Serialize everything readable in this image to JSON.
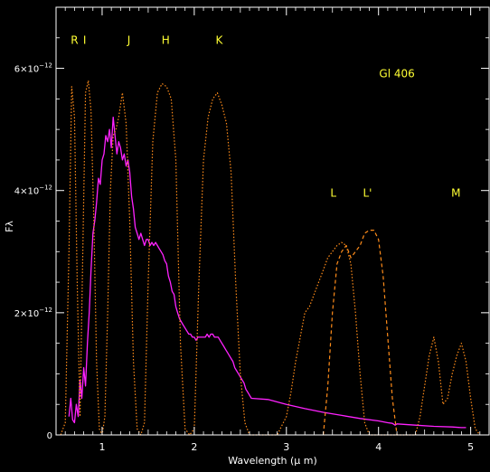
{
  "chart_data": {
    "type": "line",
    "title": "",
    "annotation": "Gl 406",
    "xlabel": "Wavelength (μ m)",
    "ylabel": "Fλ",
    "xlim": [
      0.5,
      5.2
    ],
    "ylim": [
      0,
      7e-12
    ],
    "x_ticks": [
      1,
      2,
      3,
      4,
      5
    ],
    "y_ticks": [
      0,
      2e-12,
      4e-12,
      6e-12
    ],
    "x_tick_labels": [
      "1",
      "2",
      "3",
      "4",
      "5"
    ],
    "y_tick_labels": [
      {
        "mant": "0",
        "exp": ""
      },
      {
        "mant": "2×10",
        "exp": "−12"
      },
      {
        "mant": "4×10",
        "exp": "−12"
      },
      {
        "mant": "6×10",
        "exp": "−12"
      }
    ],
    "grid": false,
    "colors": {
      "background": "#000000",
      "axes": "#ffffff",
      "spectrum": "#ff22ff",
      "filters": "#ff8c1a",
      "band_labels": "#ffff33"
    },
    "band_labels": [
      {
        "text": "R",
        "x": 0.7,
        "y": 6.4e-12
      },
      {
        "text": "I",
        "x": 0.81,
        "y": 6.4e-12
      },
      {
        "text": "J",
        "x": 1.29,
        "y": 6.4e-12
      },
      {
        "text": "H",
        "x": 1.69,
        "y": 6.4e-12
      },
      {
        "text": "K",
        "x": 2.27,
        "y": 6.4e-12
      },
      {
        "text": "L",
        "x": 3.51,
        "y": 3.9e-12
      },
      {
        "text": "L'",
        "x": 3.88,
        "y": 3.9e-12
      },
      {
        "text": "M",
        "x": 4.84,
        "y": 3.9e-12
      }
    ],
    "series": [
      {
        "style": "solid",
        "x": [
          0.64,
          0.66,
          0.68,
          0.7,
          0.72,
          0.74,
          0.76,
          0.78,
          0.8,
          0.82,
          0.84,
          0.86,
          0.88,
          0.9,
          0.92,
          0.94,
          0.96,
          0.98,
          1.0,
          1.02,
          1.04,
          1.06,
          1.08,
          1.1,
          1.12,
          1.14,
          1.16,
          1.18,
          1.2,
          1.22,
          1.24,
          1.26,
          1.28,
          1.3,
          1.32,
          1.34,
          1.36,
          1.38,
          1.4,
          1.42,
          1.44,
          1.46,
          1.48,
          1.5,
          1.52,
          1.54,
          1.56,
          1.58,
          1.6,
          1.62,
          1.64,
          1.66,
          1.68,
          1.7,
          1.72,
          1.74,
          1.76,
          1.78,
          1.8,
          1.82,
          1.84,
          1.86,
          1.88,
          1.9,
          1.92,
          1.94,
          1.96,
          1.98,
          2.0,
          2.02,
          2.04,
          2.06,
          2.08,
          2.1,
          2.12,
          2.14,
          2.16,
          2.18,
          2.2,
          2.22,
          2.24,
          2.26,
          2.28,
          2.3,
          2.32,
          2.34,
          2.36,
          2.38,
          2.4,
          2.42,
          2.44,
          2.46,
          2.48,
          2.5,
          2.52,
          2.54,
          2.56,
          2.58,
          2.6,
          2.62,
          2.8,
          3.0,
          3.2,
          3.4,
          3.6,
          3.8,
          4.0,
          4.1,
          4.15,
          4.18,
          4.2,
          4.4,
          4.6,
          4.8,
          4.9,
          4.95
        ],
        "y": [
          3e-13,
          6e-13,
          2.5e-13,
          2e-13,
          5e-13,
          3e-13,
          9e-13,
          6e-13,
          1.1e-12,
          8e-13,
          1.5e-12,
          2e-12,
          2.7e-12,
          3.3e-12,
          3.5e-12,
          3.8e-12,
          4.2e-12,
          4.1e-12,
          4.5e-12,
          4.6e-12,
          4.9e-12,
          4.8e-12,
          5e-12,
          4.7e-12,
          5.2e-12,
          4.9e-12,
          4.6e-12,
          4.8e-12,
          4.7e-12,
          4.5e-12,
          4.6e-12,
          4.4e-12,
          4.5e-12,
          4.3e-12,
          3.9e-12,
          3.7e-12,
          3.4e-12,
          3.3e-12,
          3.2e-12,
          3.3e-12,
          3.2e-12,
          3.1e-12,
          3.2e-12,
          3.2e-12,
          3.1e-12,
          3.15e-12,
          3.1e-12,
          3.15e-12,
          3.1e-12,
          3.05e-12,
          3e-12,
          2.95e-12,
          2.85e-12,
          2.8e-12,
          2.6e-12,
          2.5e-12,
          2.35e-12,
          2.3e-12,
          2.1e-12,
          2e-12,
          1.9e-12,
          1.85e-12,
          1.8e-12,
          1.75e-12,
          1.7e-12,
          1.65e-12,
          1.65e-12,
          1.6e-12,
          1.6e-12,
          1.55e-12,
          1.6e-12,
          1.6e-12,
          1.6e-12,
          1.6e-12,
          1.6e-12,
          1.65e-12,
          1.6e-12,
          1.65e-12,
          1.65e-12,
          1.6e-12,
          1.6e-12,
          1.6e-12,
          1.55e-12,
          1.5e-12,
          1.45e-12,
          1.4e-12,
          1.35e-12,
          1.3e-12,
          1.25e-12,
          1.2e-12,
          1.1e-12,
          1.05e-12,
          1e-12,
          9.5e-13,
          9e-13,
          8.5e-13,
          7.5e-13,
          7e-13,
          6.5e-13,
          6e-13,
          5.8e-13,
          5e-13,
          4.3e-13,
          3.7e-13,
          3.2e-13,
          2.7e-13,
          2.3e-13,
          2e-13,
          1.9e-13,
          1.6e-13,
          1.8e-13,
          1.6e-13,
          1.4e-13,
          1.3e-13,
          1.2e-13,
          1.2e-13
        ]
      },
      {
        "style": "dotted",
        "x": [
          0.55,
          0.6,
          0.64,
          0.67,
          0.7,
          0.73,
          0.76,
          0.79,
          0.82,
          0.85,
          0.88,
          0.91,
          0.94,
          0.97,
          1.0,
          1.03,
          1.06,
          1.09,
          1.12,
          1.15,
          1.18,
          1.22,
          1.26,
          1.3,
          1.34,
          1.38,
          1.42,
          1.46,
          1.5,
          1.55,
          1.6,
          1.65,
          1.7,
          1.75,
          1.8,
          1.85,
          1.9,
          1.95,
          2.0,
          2.05,
          2.1,
          2.15,
          2.2,
          2.25,
          2.3,
          2.35,
          2.4,
          2.45,
          2.5,
          2.55,
          2.6,
          2.7,
          2.8,
          2.9,
          3.0,
          3.05,
          3.1,
          3.15,
          3.2,
          3.25,
          3.3,
          3.35,
          3.4,
          3.45,
          3.5,
          3.55,
          3.6,
          3.65,
          3.7,
          3.75,
          3.8,
          3.85,
          3.9,
          3.95,
          4.0,
          4.1,
          4.2,
          4.3,
          4.4,
          4.45,
          4.5,
          4.55,
          4.6,
          4.65,
          4.7,
          4.75,
          4.8,
          4.85,
          4.9,
          4.95,
          5.0,
          5.05,
          5.1
        ],
        "y": [
          0,
          2e-13,
          3e-12,
          5.7e-12,
          5.2e-12,
          2.5e-12,
          3e-13,
          3e-12,
          5.6e-12,
          5.8e-12,
          5.3e-12,
          3.5e-12,
          1.2e-12,
          1e-13,
          0,
          3e-13,
          2e-12,
          4e-12,
          4.9e-12,
          5e-12,
          5.2e-12,
          5.6e-12,
          5.1e-12,
          3.5e-12,
          1.2e-12,
          1e-13,
          0,
          2e-13,
          2.5e-12,
          4.8e-12,
          5.6e-12,
          5.75e-12,
          5.7e-12,
          5.5e-12,
          4.5e-12,
          1.5e-12,
          1e-13,
          0,
          1e-13,
          2.5e-12,
          4.5e-12,
          5.2e-12,
          5.5e-12,
          5.6e-12,
          5.4e-12,
          5.1e-12,
          4.3e-12,
          2.5e-12,
          1e-12,
          2e-13,
          0,
          0,
          0,
          0,
          3e-13,
          7e-13,
          1.2e-12,
          1.6e-12,
          2e-12,
          2.1e-12,
          2.3e-12,
          2.5e-12,
          2.7e-12,
          2.9e-12,
          3e-12,
          3.1e-12,
          3.15e-12,
          3.1e-12,
          2.8e-12,
          2e-12,
          1e-12,
          2e-13,
          0,
          0,
          0,
          0,
          0,
          0,
          0,
          3e-13,
          8e-13,
          1.3e-12,
          1.6e-12,
          1.2e-12,
          5e-13,
          6e-13,
          1e-12,
          1.3e-12,
          1.5e-12,
          1.2e-12,
          6e-13,
          1e-13,
          0
        ]
      },
      {
        "style": "dashed",
        "x": [
          3.4,
          3.45,
          3.5,
          3.55,
          3.6,
          3.65,
          3.7,
          3.75,
          3.8,
          3.85,
          3.9,
          3.95,
          4.0,
          4.05,
          4.1,
          4.15,
          4.2
        ],
        "y": [
          0,
          8e-13,
          2e-12,
          2.8e-12,
          3e-12,
          3.1e-12,
          2.9e-12,
          3e-12,
          3.1e-12,
          3.3e-12,
          3.35e-12,
          3.35e-12,
          3.2e-12,
          2.6e-12,
          1.6e-12,
          6e-13,
          0
        ]
      }
    ]
  }
}
